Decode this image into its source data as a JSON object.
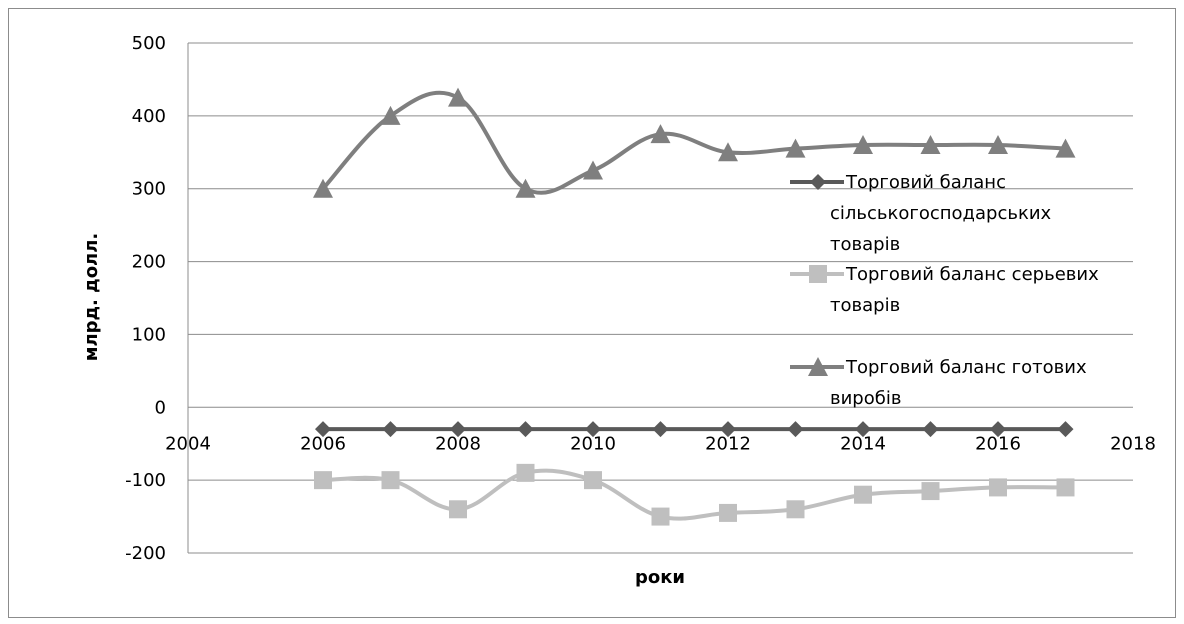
{
  "chart_data": {
    "type": "line",
    "xlabel": "роки",
    "ylabel": "млрд. долл.",
    "xlim": [
      2004,
      2018
    ],
    "ylim": [
      -200,
      500
    ],
    "x_ticks": [
      2004,
      2006,
      2008,
      2010,
      2012,
      2014,
      2016,
      2018
    ],
    "y_ticks": [
      -200,
      -100,
      0,
      100,
      200,
      300,
      400,
      500
    ],
    "grid": "horizontal",
    "legend_position": "right",
    "series": [
      {
        "name": "Торговий баланс сільськогосподарських товарів",
        "legend_lines": [
          "Торговий баланс",
          "сільськогосподарських",
          "товарів"
        ],
        "marker": "diamond",
        "color": "#595959",
        "smooth": false,
        "x": [
          2006,
          2007,
          2008,
          2009,
          2010,
          2011,
          2012,
          2013,
          2014,
          2015,
          2016,
          2017
        ],
        "values": [
          -30,
          -30,
          -30,
          -30,
          -30,
          -30,
          -30,
          -30,
          -30,
          -30,
          -30,
          -30
        ]
      },
      {
        "name": "Торговий баланс серьевих товарів",
        "legend_lines": [
          "Торговий баланс серьевих",
          "товарів"
        ],
        "marker": "square",
        "color": "#bfbfbf",
        "smooth": true,
        "x": [
          2006,
          2007,
          2008,
          2009,
          2010,
          2011,
          2012,
          2013,
          2014,
          2015,
          2016,
          2017
        ],
        "values": [
          -100,
          -100,
          -140,
          -90,
          -100,
          -150,
          -145,
          -140,
          -120,
          -115,
          -110,
          -110
        ]
      },
      {
        "name": "Торговий баланс готових виробів",
        "legend_lines": [
          "Торговий баланс готових",
          "виробів"
        ],
        "marker": "triangle",
        "color": "#7f7f7f",
        "smooth": true,
        "x": [
          2006,
          2007,
          2008,
          2009,
          2010,
          2011,
          2012,
          2013,
          2014,
          2015,
          2016,
          2017
        ],
        "values": [
          300,
          400,
          425,
          300,
          325,
          375,
          350,
          355,
          360,
          360,
          360,
          355
        ]
      }
    ]
  }
}
